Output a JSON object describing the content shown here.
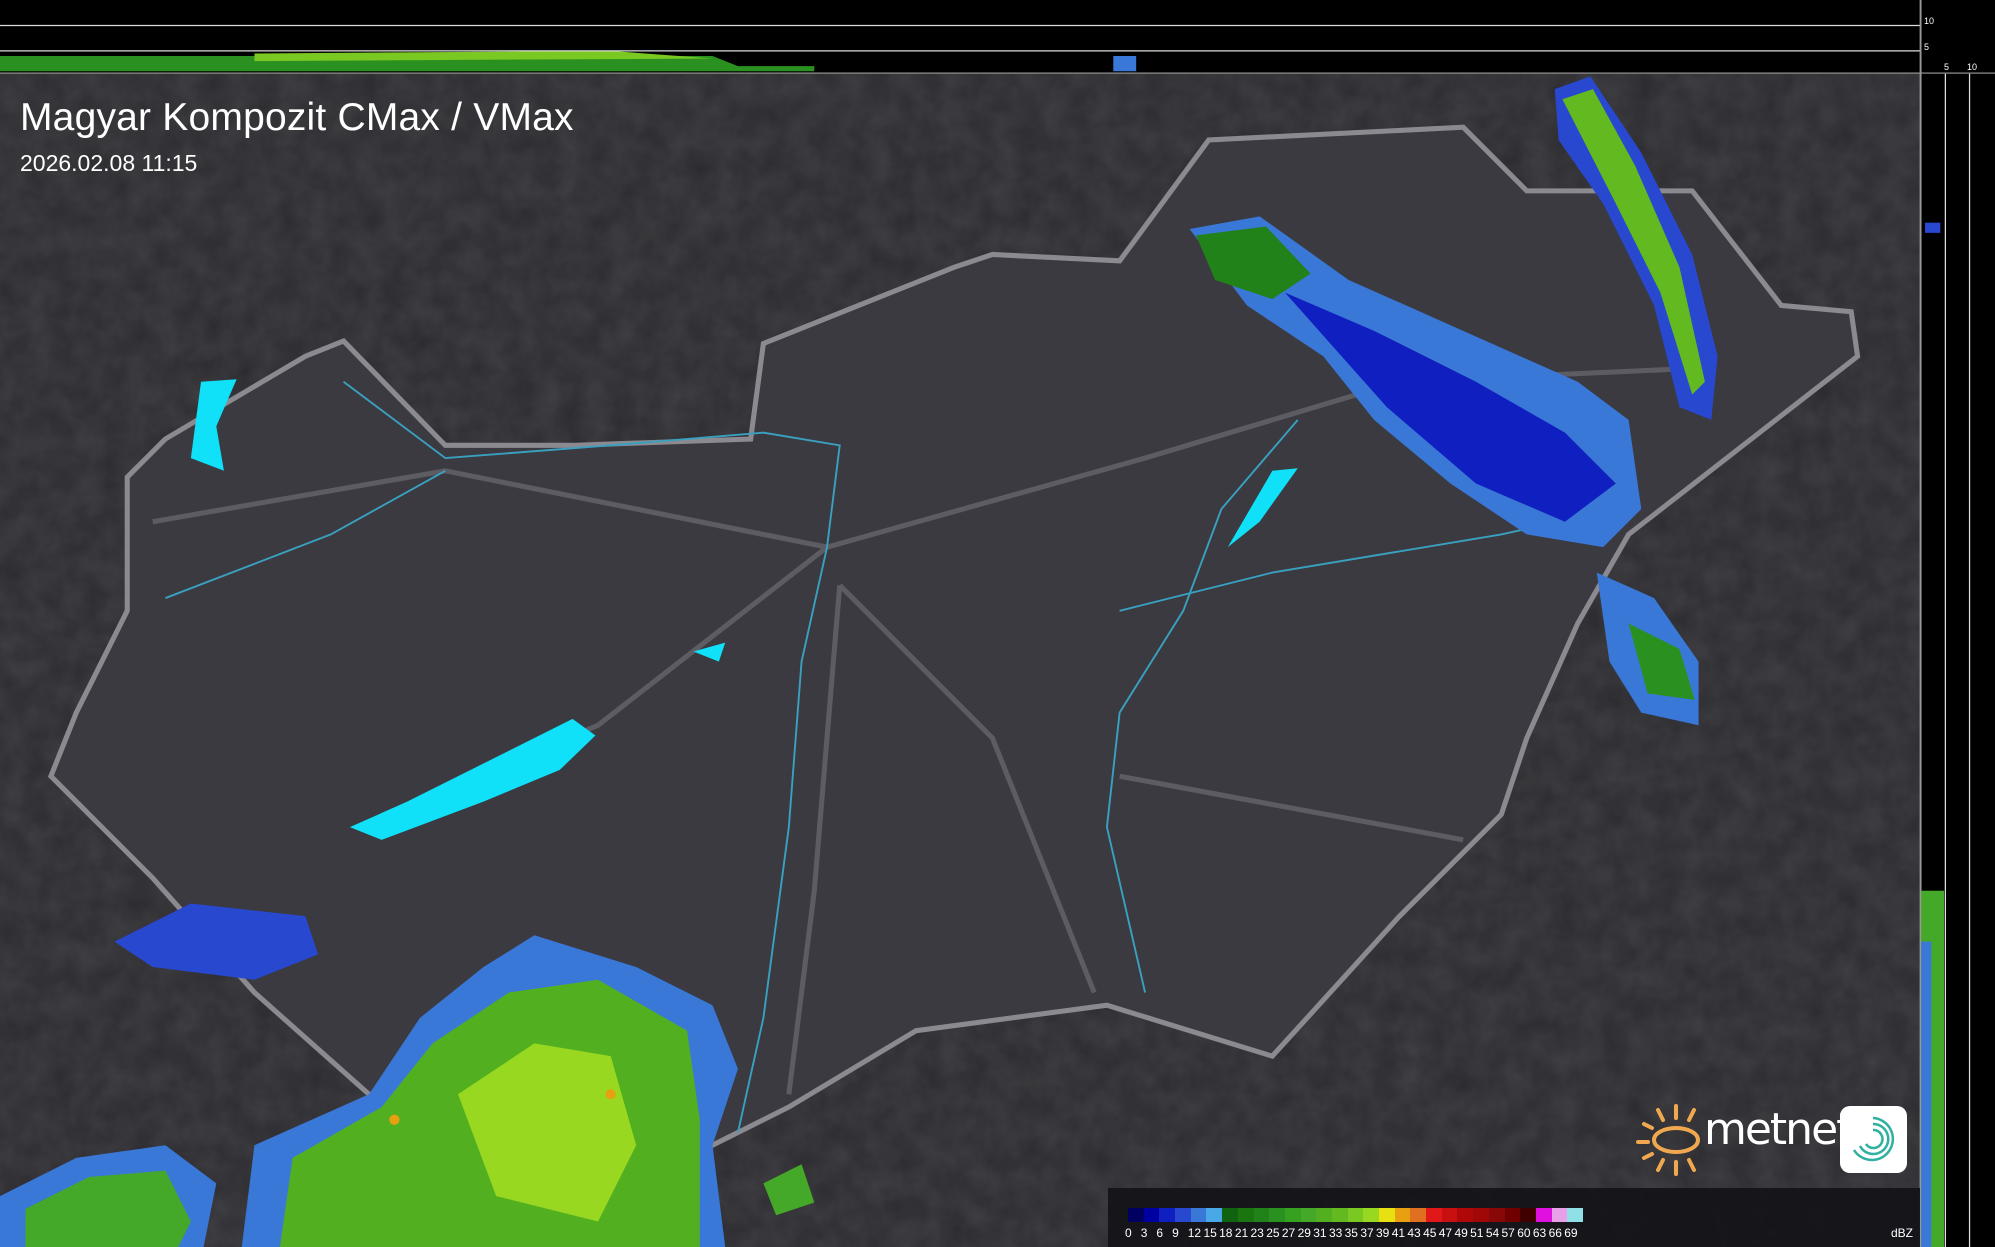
{
  "header": {
    "title": "Magyar Kompozit CMax / VMax",
    "timestamp": "2026.02.08 11:15"
  },
  "profile_axes": {
    "top_ticks": [
      "10",
      "5"
    ],
    "right_ticks": [
      "5",
      "10"
    ]
  },
  "legend": {
    "unit": "dBZ",
    "labels": [
      "0",
      "3",
      "6",
      "9",
      "12",
      "15",
      "18",
      "21",
      "23",
      "25",
      "27",
      "29",
      "31",
      "33",
      "35",
      "37",
      "39",
      "41",
      "43",
      "45",
      "47",
      "49",
      "51",
      "54",
      "57",
      "60",
      "63",
      "66",
      "69"
    ],
    "colors": [
      "#000060",
      "#0000a0",
      "#1020c0",
      "#2848d0",
      "#3a78d8",
      "#48a8e8",
      "#106410",
      "#1a7410",
      "#208218",
      "#2a9020",
      "#36a020",
      "#44a828",
      "#52b020",
      "#62ba20",
      "#7ac822",
      "#98d820",
      "#e8e010",
      "#e8a010",
      "#e07020",
      "#e01818",
      "#c81010",
      "#b00808",
      "#a00808",
      "#880808",
      "#700000",
      "#400000",
      "#e010e0",
      "#e8a0e8",
      "#90e0e8"
    ]
  },
  "map": {
    "colors": {
      "terrain": "#2b2b2f",
      "country": "#3c3c42",
      "border": "#8a8a90",
      "river": "#3aa0c0",
      "lake": "#10e0f8"
    }
  },
  "logo": {
    "brand": "metnet"
  }
}
